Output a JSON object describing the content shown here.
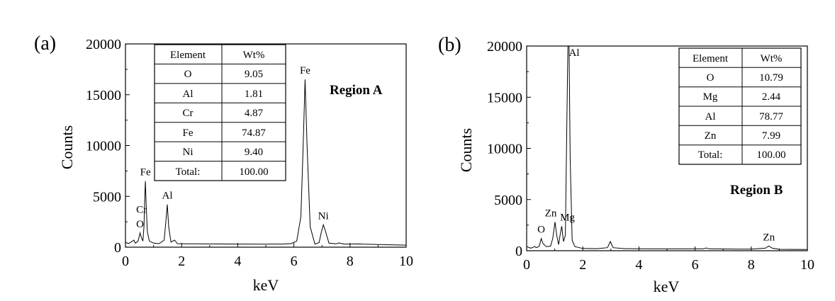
{
  "chart_data": [
    {
      "type": "line",
      "panel_label": "(a)",
      "xlabel": "keV",
      "ylabel": "Counts",
      "xlim": [
        0,
        10
      ],
      "ylim": [
        0,
        20000
      ],
      "x_ticks": [
        "0",
        "2",
        "4",
        "6",
        "8",
        "10"
      ],
      "y_ticks": [
        "0",
        "5000",
        "10000",
        "15000",
        "20000"
      ],
      "region_label": "Region A",
      "peaks": [
        {
          "label": "O",
          "x": 0.52,
          "y": 1400
        },
        {
          "label": "Cr",
          "x": 0.57,
          "y": 2400
        },
        {
          "label": "Fe",
          "x": 0.71,
          "y": 6500
        },
        {
          "label": "Al",
          "x": 1.49,
          "y": 4200
        },
        {
          "label": "Fe",
          "x": 6.4,
          "y": 16500
        },
        {
          "label": "Ni",
          "x": 7.05,
          "y": 2200
        }
      ],
      "spectrum": [
        [
          0.0,
          500
        ],
        [
          0.1,
          350
        ],
        [
          0.2,
          500
        ],
        [
          0.3,
          700
        ],
        [
          0.35,
          400
        ],
        [
          0.45,
          600
        ],
        [
          0.52,
          1400
        ],
        [
          0.56,
          1000
        ],
        [
          0.62,
          600
        ],
        [
          0.66,
          2000
        ],
        [
          0.69,
          5000
        ],
        [
          0.71,
          6500
        ],
        [
          0.74,
          4000
        ],
        [
          0.78,
          1500
        ],
        [
          0.85,
          600
        ],
        [
          1.0,
          400
        ],
        [
          1.2,
          350
        ],
        [
          1.38,
          700
        ],
        [
          1.44,
          2500
        ],
        [
          1.49,
          4200
        ],
        [
          1.54,
          2000
        ],
        [
          1.62,
          500
        ],
        [
          1.75,
          700
        ],
        [
          1.85,
          350
        ],
        [
          2.2,
          330
        ],
        [
          3.0,
          320
        ],
        [
          4.0,
          310
        ],
        [
          5.0,
          300
        ],
        [
          5.6,
          310
        ],
        [
          5.9,
          350
        ],
        [
          6.1,
          600
        ],
        [
          6.25,
          3000
        ],
        [
          6.33,
          10000
        ],
        [
          6.4,
          16500
        ],
        [
          6.47,
          10000
        ],
        [
          6.58,
          2000
        ],
        [
          6.75,
          300
        ],
        [
          6.9,
          450
        ],
        [
          6.98,
          1500
        ],
        [
          7.05,
          2200
        ],
        [
          7.12,
          1600
        ],
        [
          7.25,
          400
        ],
        [
          7.5,
          330
        ],
        [
          7.6,
          420
        ],
        [
          7.8,
          300
        ],
        [
          8.3,
          320
        ],
        [
          8.5,
          290
        ],
        [
          9.0,
          260
        ],
        [
          10.0,
          200
        ]
      ],
      "table": {
        "headers": [
          "Element",
          "Wt%"
        ],
        "rows": [
          [
            "O",
            "9.05"
          ],
          [
            "Al",
            "1.81"
          ],
          [
            "Cr",
            "4.87"
          ],
          [
            "Fe",
            "74.87"
          ],
          [
            "Ni",
            "9.40"
          ],
          [
            "Total:",
            "100.00"
          ]
        ]
      }
    },
    {
      "type": "line",
      "panel_label": "(b)",
      "xlabel": "keV",
      "ylabel": "Counts",
      "xlim": [
        0,
        10
      ],
      "ylim": [
        0,
        20000
      ],
      "x_ticks": [
        "0",
        "2",
        "4",
        "6",
        "8",
        "10"
      ],
      "y_ticks": [
        "0",
        "5000",
        "10000",
        "15000",
        "20000"
      ],
      "region_label": "Region B",
      "peaks": [
        {
          "label": "O",
          "x": 0.52,
          "y": 1200
        },
        {
          "label": "Zn",
          "x": 1.01,
          "y": 2800
        },
        {
          "label": "Mg",
          "x": 1.25,
          "y": 2400
        },
        {
          "label": "Al",
          "x": 1.49,
          "y": 20000
        },
        {
          "label": "Zn",
          "x": 8.63,
          "y": 450
        }
      ],
      "spectrum": [
        [
          0.0,
          400
        ],
        [
          0.15,
          250
        ],
        [
          0.28,
          400
        ],
        [
          0.35,
          300
        ],
        [
          0.45,
          450
        ],
        [
          0.52,
          1200
        ],
        [
          0.58,
          700
        ],
        [
          0.7,
          400
        ],
        [
          0.85,
          450
        ],
        [
          0.93,
          1200
        ],
        [
          1.01,
          2800
        ],
        [
          1.07,
          1500
        ],
        [
          1.14,
          600
        ],
        [
          1.19,
          1500
        ],
        [
          1.25,
          2400
        ],
        [
          1.31,
          900
        ],
        [
          1.38,
          1500
        ],
        [
          1.43,
          12000
        ],
        [
          1.47,
          20000
        ],
        [
          1.51,
          20000
        ],
        [
          1.55,
          9000
        ],
        [
          1.62,
          1000
        ],
        [
          1.72,
          400
        ],
        [
          2.0,
          220
        ],
        [
          2.5,
          200
        ],
        [
          2.88,
          300
        ],
        [
          2.98,
          900
        ],
        [
          3.08,
          300
        ],
        [
          3.5,
          200
        ],
        [
          4.0,
          190
        ],
        [
          5.0,
          180
        ],
        [
          6.3,
          190
        ],
        [
          6.4,
          260
        ],
        [
          6.5,
          190
        ],
        [
          7.5,
          150
        ],
        [
          8.0,
          150
        ],
        [
          8.5,
          250
        ],
        [
          8.63,
          450
        ],
        [
          8.75,
          250
        ],
        [
          9.0,
          140
        ],
        [
          10.0,
          120
        ]
      ],
      "table": {
        "headers": [
          "Element",
          "Wt%"
        ],
        "rows": [
          [
            "O",
            "10.79"
          ],
          [
            "Mg",
            "2.44"
          ],
          [
            "Al",
            "78.77"
          ],
          [
            "Zn",
            "7.99"
          ],
          [
            "Total:",
            "100.00"
          ]
        ]
      }
    }
  ]
}
